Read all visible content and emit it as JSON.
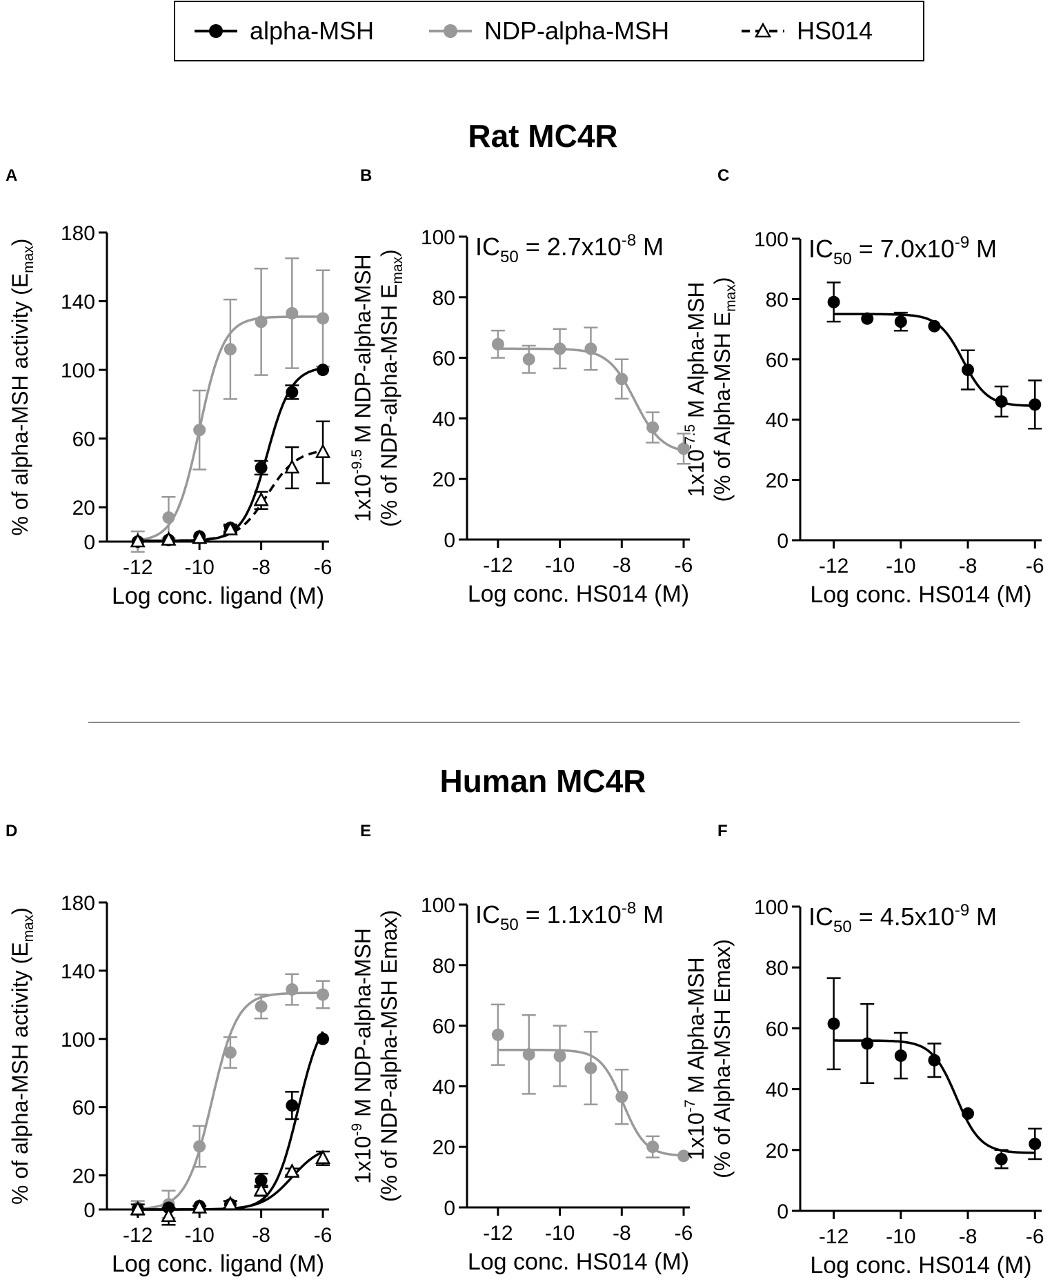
{
  "legend": {
    "items": [
      {
        "name": "alpha-MSH",
        "color": "#000000",
        "marker": "circle",
        "dash": false
      },
      {
        "name": "NDP-alpha-MSH",
        "color": "#999999",
        "marker": "circle",
        "dash": false
      },
      {
        "name": "HS014",
        "color": "#000000",
        "marker": "triangle-open",
        "dash": true
      }
    ]
  },
  "sections": {
    "rat_title": "Rat MC4R",
    "human_title": "Human MC4R"
  },
  "colors": {
    "black": "#000000",
    "gray": "#999999"
  },
  "chart_data": [
    {
      "panel": "A",
      "type": "line",
      "title": "",
      "xlabel": "Log conc. ligand (M)",
      "ylabel": "% of alpha-MSH activity (E_max)",
      "ylabel_lines": [
        {
          "main": "% of alpha-MSH activity (E",
          "sub": "max",
          "after": ")"
        }
      ],
      "xlim": [
        -13,
        -5.8
      ],
      "xticks": [
        -12,
        -10,
        -8,
        -6
      ],
      "ylim": [
        0,
        180
      ],
      "yticks": [
        0,
        20,
        60,
        100,
        140,
        180
      ],
      "series": [
        {
          "name": "NDP-alpha-MSH",
          "color": "#999999",
          "marker": "circle",
          "dash": false,
          "x": [
            -12,
            -11,
            -10,
            -9,
            -8,
            -7,
            -6
          ],
          "y": [
            0,
            14,
            65,
            112,
            128,
            133,
            130
          ],
          "err": [
            6,
            12,
            23,
            29,
            31,
            32,
            28
          ],
          "fit": {
            "bottom": 0,
            "top": 131,
            "logec50": -10.0,
            "hill": 1.1
          }
        },
        {
          "name": "alpha-MSH",
          "color": "#000000",
          "marker": "circle",
          "dash": false,
          "x": [
            -12,
            -11,
            -10,
            -9,
            -8,
            -7,
            -6
          ],
          "y": [
            0,
            1,
            3,
            8,
            43,
            87,
            100
          ],
          "err": [
            0,
            0,
            0,
            2,
            4,
            4,
            0
          ],
          "fit": {
            "bottom": 0.5,
            "top": 102,
            "logec50": -7.8,
            "hill": 1.1
          }
        },
        {
          "name": "HS014",
          "color": "#000000",
          "marker": "triangle-open",
          "dash": true,
          "x": [
            -12,
            -11,
            -10,
            -9,
            -8,
            -7,
            -6
          ],
          "y": [
            0,
            1,
            2,
            7,
            24,
            43,
            52
          ],
          "err": [
            0,
            0,
            0,
            2,
            5,
            12,
            18
          ],
          "fit": {
            "bottom": 0.5,
            "top": 54,
            "logec50": -7.8,
            "hill": 0.9
          }
        }
      ]
    },
    {
      "panel": "B",
      "type": "line",
      "title": "",
      "annotation": {
        "prefix": "IC",
        "sub": "50",
        "mid": " = 2.7x10",
        "sup": "-8",
        "suffix": " M"
      },
      "xlabel": "Log conc. HS014 (M)",
      "ylabel": "1x10^-9.5 M NDP-alpha-MSH (% of NDP-alpha-MSH E max)",
      "ylabel_lines": [
        {
          "pre": "1x10",
          "sup": "-9.5",
          "post": " M  NDP-alpha-MSH"
        },
        {
          "main": "(% of NDP-alpha-MSH E",
          "sub": "max",
          "after": ")"
        }
      ],
      "xlim": [
        -13,
        -5.8
      ],
      "xticks": [
        -12,
        -10,
        -8,
        -6
      ],
      "ylim": [
        0,
        100
      ],
      "yticks": [
        0,
        20,
        40,
        60,
        80,
        100
      ],
      "series": [
        {
          "name": "NDP-alpha-MSH",
          "color": "#999999",
          "marker": "circle",
          "dash": false,
          "x": [
            -12,
            -11,
            -10,
            -9,
            -8,
            -7,
            -6
          ],
          "y": [
            64.5,
            59.5,
            63,
            63,
            53,
            37,
            30
          ],
          "err": [
            4.5,
            4.5,
            6.5,
            7,
            6.5,
            5,
            5
          ],
          "fit": {
            "type": "inhibition",
            "bottom": 28.5,
            "top": 63,
            "logic50": -7.57,
            "hill": 1.0
          }
        }
      ]
    },
    {
      "panel": "C",
      "type": "line",
      "title": "",
      "annotation": {
        "prefix": "IC",
        "sub": "50",
        "mid": " = 7.0x10",
        "sup": "-9",
        "suffix": " M"
      },
      "xlabel": "Log conc. HS014 (M)",
      "ylabel": "1x10^-7.5 M Alpha-MSH (% of Alpha-MSH E max)",
      "ylabel_lines": [
        {
          "pre": "1x10",
          "sup": "-7.5",
          "post": " M   Alpha-MSH"
        },
        {
          "main": "(% of Alpha-MSH E",
          "sub": "max",
          "after": ")"
        }
      ],
      "xlim": [
        -13,
        -5.8
      ],
      "xticks": [
        -12,
        -10,
        -8,
        -6
      ],
      "ylim": [
        0,
        100
      ],
      "yticks": [
        0,
        20,
        40,
        60,
        80,
        100
      ],
      "series": [
        {
          "name": "alpha-MSH",
          "color": "#000000",
          "marker": "circle",
          "dash": false,
          "x": [
            -12,
            -11,
            -10,
            -9,
            -8,
            -7,
            -6
          ],
          "y": [
            79,
            73.5,
            72.5,
            71,
            56.5,
            46,
            45
          ],
          "err": [
            6.5,
            0,
            3,
            0,
            6.5,
            5,
            8
          ],
          "fit": {
            "type": "inhibition",
            "bottom": 44.5,
            "top": 75,
            "logic50": -8.15,
            "hill": 1.2
          }
        }
      ]
    },
    {
      "panel": "D",
      "type": "line",
      "title": "",
      "xlabel": "Log conc. ligand (M)",
      "ylabel": "% of alpha-MSH activity (E_max)",
      "ylabel_lines": [
        {
          "main": "% of alpha-MSH activity (E",
          "sub": "max",
          "after": ")"
        }
      ],
      "xlim": [
        -13,
        -5.8
      ],
      "xticks": [
        -12,
        -10,
        -8,
        -6
      ],
      "ylim": [
        0,
        180
      ],
      "yticks": [
        0,
        20,
        60,
        100,
        140,
        180
      ],
      "series": [
        {
          "name": "NDP-alpha-MSH",
          "color": "#999999",
          "marker": "circle",
          "dash": false,
          "x": [
            -12,
            -11,
            -10,
            -9,
            -8,
            -7,
            -6
          ],
          "y": [
            1,
            3,
            37,
            92,
            119,
            129,
            126
          ],
          "err": [
            4,
            8,
            12,
            9,
            7,
            9,
            8
          ],
          "fit": {
            "bottom": 0,
            "top": 127,
            "logec50": -9.6,
            "hill": 1.05
          }
        },
        {
          "name": "alpha-MSH",
          "color": "#000000",
          "marker": "circle",
          "dash": false,
          "x": [
            -12,
            -11,
            -10,
            -9,
            -8,
            -7,
            -6
          ],
          "y": [
            0,
            1,
            2,
            3,
            17,
            61,
            100
          ],
          "err": [
            0,
            0,
            0,
            2,
            4,
            8,
            0
          ],
          "fit": {
            "bottom": 0,
            "top": 118,
            "logec50": -6.8,
            "hill": 1.1
          }
        },
        {
          "name": "HS014",
          "color": "#000000",
          "marker": "triangle-open",
          "dash": false,
          "x": [
            -12,
            -11,
            -10,
            -9,
            -8,
            -7,
            -6
          ],
          "y": [
            0,
            -4,
            1,
            3,
            11,
            22,
            30
          ],
          "err": [
            3,
            5,
            1,
            2,
            3,
            2,
            4
          ],
          "fit": {
            "bottom": 0,
            "top": 38,
            "logec50": -7.0,
            "hill": 0.9
          }
        }
      ]
    },
    {
      "panel": "E",
      "type": "line",
      "title": "",
      "annotation": {
        "prefix": "IC",
        "sub": "50",
        "mid": " = 1.1x10",
        "sup": "-8",
        "suffix": " M"
      },
      "xlabel": "Log conc. HS014 (M)",
      "ylabel": "1x10^-9 M NDP-alpha-MSH (% of NDP-alpha-MSH Emax)",
      "ylabel_lines": [
        {
          "pre": "1x10",
          "sup": "-9",
          "post": " M NDP-alpha-MSH"
        },
        {
          "main": "(% of NDP-alpha-MSH Emax)"
        }
      ],
      "xlim": [
        -13,
        -5.8
      ],
      "xticks": [
        -12,
        -10,
        -8,
        -6
      ],
      "ylim": [
        0,
        100
      ],
      "yticks": [
        0,
        20,
        40,
        60,
        80,
        100
      ],
      "series": [
        {
          "name": "NDP-alpha-MSH",
          "color": "#999999",
          "marker": "circle",
          "dash": false,
          "x": [
            -12,
            -11,
            -10,
            -9,
            -8,
            -7,
            -6
          ],
          "y": [
            57,
            50.5,
            50,
            46,
            36.5,
            20,
            17
          ],
          "err": [
            10,
            13,
            10,
            12,
            9,
            3.5,
            0
          ],
          "fit": {
            "type": "inhibition",
            "bottom": 17,
            "top": 52,
            "logic50": -7.96,
            "hill": 1.2
          }
        }
      ]
    },
    {
      "panel": "F",
      "type": "line",
      "title": "",
      "annotation": {
        "prefix": "IC",
        "sub": "50",
        "mid": " = 4.5x10",
        "sup": "-9",
        "suffix": " M"
      },
      "xlabel": "Log conc. HS014 (M)",
      "ylabel": "1x10^-7 M Alpha-MSH (% of Alpha-MSH Emax)",
      "ylabel_lines": [
        {
          "pre": "1x10",
          "sup": "-7",
          "post": " M Alpha-MSH"
        },
        {
          "main": "(% of Alpha-MSH Emax)"
        }
      ],
      "xlim": [
        -13,
        -5.8
      ],
      "xticks": [
        -12,
        -10,
        -8,
        -6
      ],
      "ylim": [
        0,
        100
      ],
      "yticks": [
        0,
        20,
        40,
        60,
        80,
        100
      ],
      "series": [
        {
          "name": "alpha-MSH",
          "color": "#000000",
          "marker": "circle",
          "dash": false,
          "x": [
            -12,
            -11,
            -10,
            -9,
            -8,
            -7,
            -6
          ],
          "y": [
            61.5,
            55,
            51,
            49.5,
            32,
            17,
            22
          ],
          "err": [
            15,
            13,
            7.5,
            5.5,
            0,
            3,
            5
          ],
          "fit": {
            "type": "inhibition",
            "bottom": 19,
            "top": 56,
            "logic50": -8.35,
            "hill": 1.2
          }
        }
      ]
    }
  ]
}
